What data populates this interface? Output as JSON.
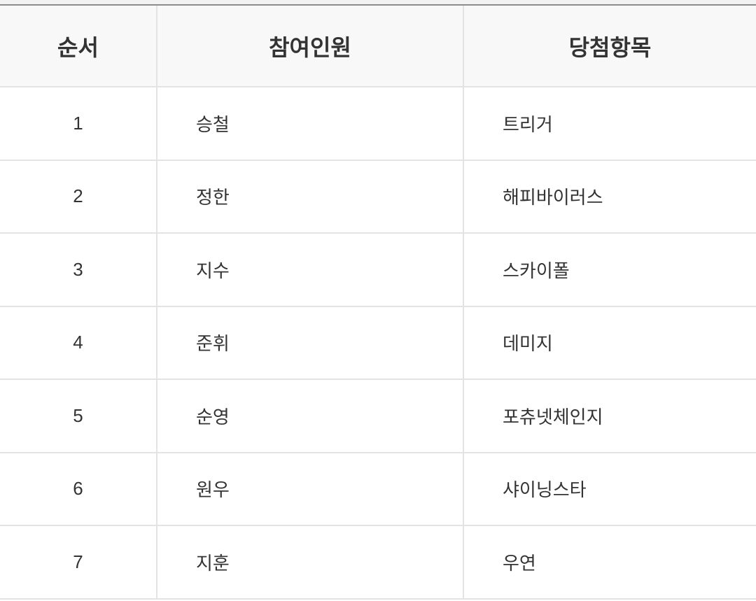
{
  "table": {
    "headers": [
      "순서",
      "참여인원",
      "당첨항목"
    ],
    "rows": [
      {
        "order": "1",
        "member": "승철",
        "item": "트리거"
      },
      {
        "order": "2",
        "member": "정한",
        "item": "해피바이러스"
      },
      {
        "order": "3",
        "member": "지수",
        "item": "스카이폴"
      },
      {
        "order": "4",
        "member": "준휘",
        "item": "데미지"
      },
      {
        "order": "5",
        "member": "순영",
        "item": "포츄넷체인지"
      },
      {
        "order": "6",
        "member": "원우",
        "item": "샤이닝스타"
      },
      {
        "order": "7",
        "member": "지훈",
        "item": "우연"
      }
    ]
  }
}
